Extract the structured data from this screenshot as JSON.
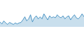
{
  "chart_data": {
    "type": "area",
    "values": [
      18,
      14,
      20,
      16,
      13,
      17,
      15,
      13,
      16,
      14,
      16,
      17,
      22,
      28,
      20,
      24,
      32,
      18,
      26,
      30,
      24,
      28,
      24,
      34,
      28,
      22,
      30,
      26,
      28,
      26,
      32,
      28,
      26,
      30,
      24,
      28,
      30,
      22,
      28,
      32,
      26,
      24,
      28,
      34,
      28
    ],
    "baseline": 8,
    "color": "#2980b9",
    "ylim": [
      0,
      61.2
    ],
    "tick_labels": false,
    "grid": false
  }
}
